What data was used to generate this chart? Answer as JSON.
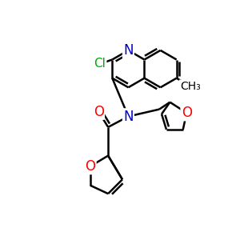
{
  "bg_color": "#ffffff",
  "atom_colors": {
    "N": "#0000cc",
    "O": "#ff0000",
    "Cl": "#00aa00",
    "C": "#000000"
  },
  "bond_color": "#000000",
  "bond_width": 1.8,
  "font_size_atom": 12,
  "font_size_cl": 11,
  "font_size_methyl": 10
}
